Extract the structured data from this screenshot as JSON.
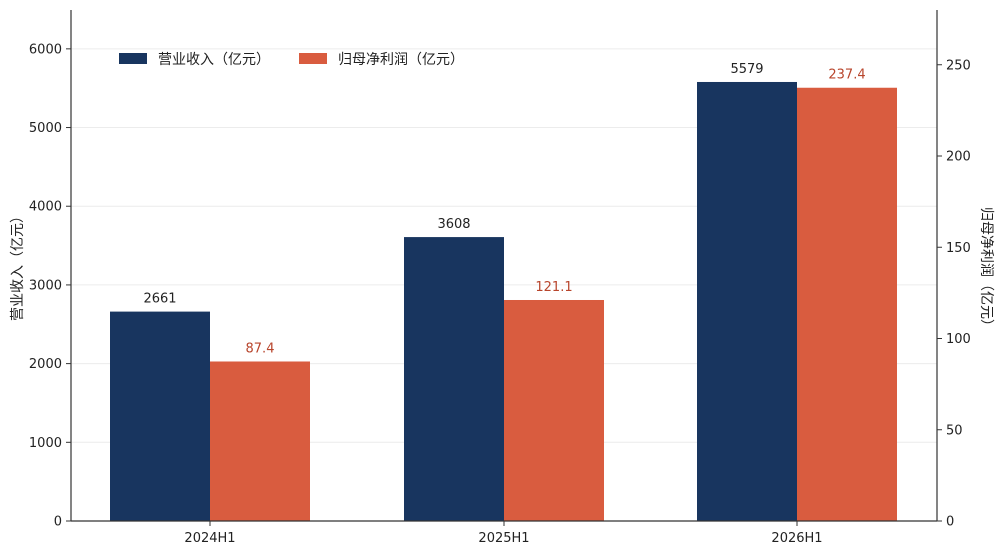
{
  "chart_data": {
    "type": "bar",
    "categories": [
      "2024H1",
      "2025H1",
      "2026H1"
    ],
    "series": [
      {
        "name": "营业收入（亿元）",
        "axis": "left",
        "color": "#18355f",
        "label_color": "#222222",
        "values": [
          2661,
          3608,
          5579
        ],
        "labels": [
          "2661",
          "3608",
          "5579"
        ]
      },
      {
        "name": "归母净利润（亿元）",
        "axis": "right",
        "color": "#d95c3f",
        "label_color": "#b8452c",
        "values": [
          87.4,
          121.1,
          237.4
        ],
        "labels": [
          "87.4",
          "121.1",
          "237.4"
        ]
      }
    ],
    "ylabel": "营业收入（亿元）",
    "y2label": "归母净利润（亿元）",
    "ylim": [
      0,
      6500
    ],
    "y2lim": [
      0,
      280
    ],
    "yticks": [
      "0",
      "1000",
      "2000",
      "3000",
      "4000",
      "5000",
      "6000"
    ],
    "y2ticks": [
      "0",
      "50",
      "100",
      "150",
      "200",
      "250"
    ],
    "grid": true,
    "legend_position": "top-left"
  }
}
